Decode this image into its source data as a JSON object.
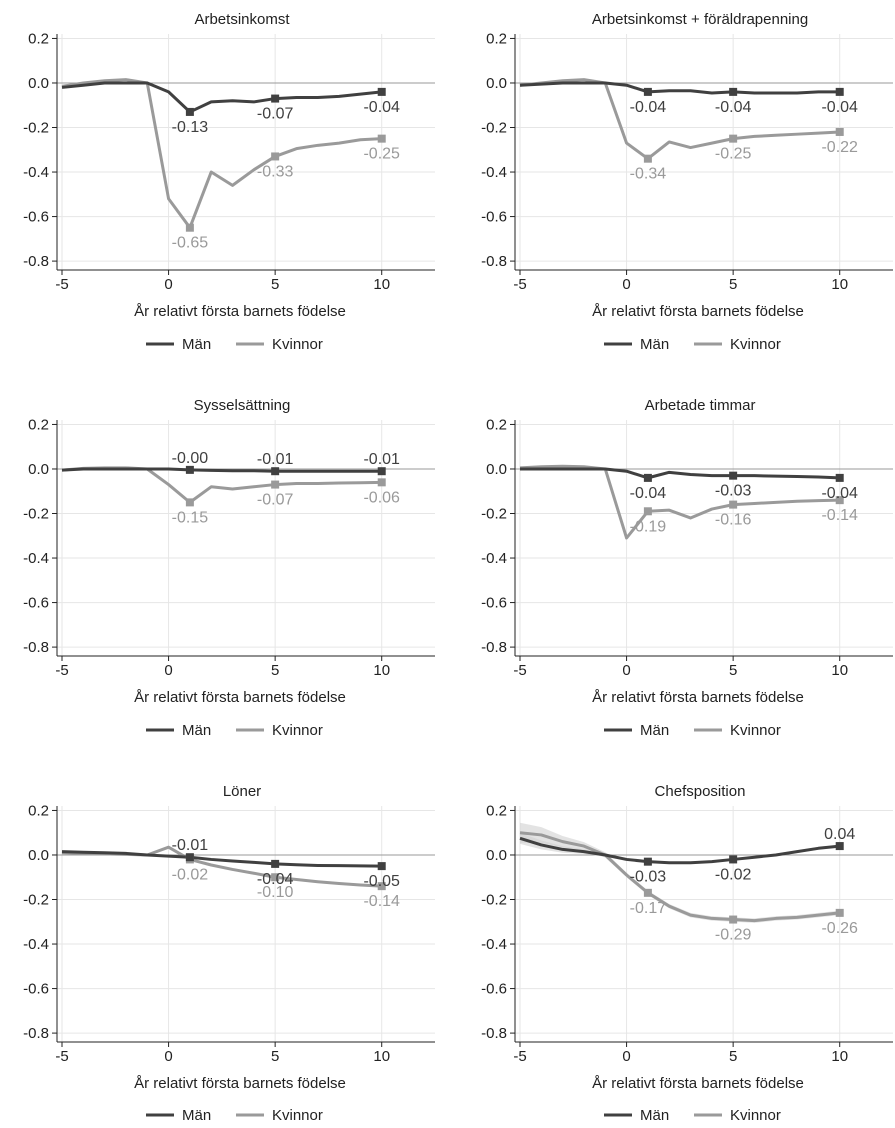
{
  "chart_data": [
    {
      "type": "line",
      "title": "Arbetsinkomst",
      "xlabel": "År relativt första barnets födelse",
      "ylabel": "",
      "xlim": [
        -5,
        12.5
      ],
      "ylim": [
        -0.84,
        0.22
      ],
      "x_ticks": [
        -5,
        0,
        5,
        10
      ],
      "x_tick_labels": [
        "-5",
        "0",
        "5",
        "10"
      ],
      "y_ticks": [
        0.2,
        0.0,
        -0.2,
        -0.4,
        -0.6,
        -0.8
      ],
      "y_tick_labels": [
        "0.2",
        "0.0",
        "-0.2",
        "-0.4",
        "-0.6",
        "-0.8"
      ],
      "grid": true,
      "legend_position": "bottom",
      "series": [
        {
          "name": "Män",
          "color": "#404040",
          "x": [
            -5,
            -4,
            -3,
            -2,
            -1,
            0,
            1,
            2,
            3,
            4,
            5,
            6,
            7,
            8,
            9,
            10
          ],
          "values": [
            -0.02,
            -0.01,
            0.0,
            0.0,
            0.0,
            -0.04,
            -0.13,
            -0.085,
            -0.08,
            -0.085,
            -0.07,
            -0.065,
            -0.065,
            -0.06,
            -0.05,
            -0.04
          ],
          "marker_x": [
            1,
            5,
            10
          ],
          "marker_labels": [
            "-0.13",
            "-0.07",
            "-0.04"
          ]
        },
        {
          "name": "Kvinnor",
          "color": "#9a9a9a",
          "x": [
            -5,
            -4,
            -3,
            -2,
            -1,
            0,
            1,
            2,
            3,
            4,
            5,
            6,
            7,
            8,
            9,
            10
          ],
          "values": [
            -0.015,
            0.0,
            0.01,
            0.015,
            0.0,
            -0.52,
            -0.65,
            -0.4,
            -0.46,
            -0.39,
            -0.33,
            -0.295,
            -0.28,
            -0.27,
            -0.255,
            -0.25
          ],
          "marker_x": [
            1,
            5,
            10
          ],
          "marker_labels": [
            "-0.65",
            "-0.33",
            "-0.25"
          ]
        }
      ]
    },
    {
      "type": "line",
      "title": "Arbetsinkomst + föräldrapenning",
      "xlabel": "År relativt första barnets födelse",
      "ylabel": "",
      "xlim": [
        -5,
        12.5
      ],
      "ylim": [
        -0.84,
        0.22
      ],
      "x_ticks": [
        -5,
        0,
        5,
        10
      ],
      "x_tick_labels": [
        "-5",
        "0",
        "5",
        "10"
      ],
      "y_ticks": [
        0.2,
        0.0,
        -0.2,
        -0.4,
        -0.6,
        -0.8
      ],
      "y_tick_labels": [
        "0.2",
        "0.0",
        "-0.2",
        "-0.4",
        "-0.6",
        "-0.8"
      ],
      "grid": true,
      "legend_position": "bottom",
      "series": [
        {
          "name": "Män",
          "color": "#404040",
          "x": [
            -5,
            -4,
            -3,
            -2,
            -1,
            0,
            1,
            2,
            3,
            4,
            5,
            6,
            7,
            8,
            9,
            10
          ],
          "values": [
            -0.01,
            -0.005,
            0.0,
            0.0,
            0.0,
            -0.01,
            -0.04,
            -0.035,
            -0.035,
            -0.045,
            -0.04,
            -0.045,
            -0.045,
            -0.045,
            -0.04,
            -0.04
          ],
          "marker_x": [
            1,
            5,
            10
          ],
          "marker_labels": [
            "-0.04",
            "-0.04",
            "-0.04"
          ]
        },
        {
          "name": "Kvinnor",
          "color": "#9a9a9a",
          "x": [
            -5,
            -4,
            -3,
            -2,
            -1,
            0,
            1,
            2,
            3,
            4,
            5,
            6,
            7,
            8,
            9,
            10
          ],
          "values": [
            -0.01,
            0.0,
            0.01,
            0.015,
            0.0,
            -0.27,
            -0.34,
            -0.265,
            -0.29,
            -0.27,
            -0.25,
            -0.24,
            -0.235,
            -0.23,
            -0.225,
            -0.22
          ],
          "marker_x": [
            1,
            5,
            10
          ],
          "marker_labels": [
            "-0.34",
            "-0.25",
            "-0.22"
          ]
        }
      ]
    },
    {
      "type": "line",
      "title": "Sysselsättning",
      "xlabel": "År relativt första barnets födelse",
      "ylabel": "",
      "xlim": [
        -5,
        12.5
      ],
      "ylim": [
        -0.84,
        0.22
      ],
      "x_ticks": [
        -5,
        0,
        5,
        10
      ],
      "x_tick_labels": [
        "-5",
        "0",
        "5",
        "10"
      ],
      "y_ticks": [
        0.2,
        0.0,
        -0.2,
        -0.4,
        -0.6,
        -0.8
      ],
      "y_tick_labels": [
        "0.2",
        "0.0",
        "-0.2",
        "-0.4",
        "-0.6",
        "-0.8"
      ],
      "grid": true,
      "legend_position": "bottom",
      "series": [
        {
          "name": "Män",
          "color": "#404040",
          "x": [
            -5,
            -4,
            -3,
            -2,
            -1,
            0,
            1,
            2,
            3,
            4,
            5,
            6,
            7,
            8,
            9,
            10
          ],
          "values": [
            -0.005,
            0.0,
            0.0,
            0.0,
            0.0,
            0.0,
            -0.004,
            -0.006,
            -0.008,
            -0.008,
            -0.01,
            -0.01,
            -0.01,
            -0.01,
            -0.01,
            -0.01
          ],
          "marker_x": [
            1,
            5,
            10
          ],
          "marker_labels": [
            "-0.00",
            "-0.01",
            "-0.01"
          ]
        },
        {
          "name": "Kvinnor",
          "color": "#9a9a9a",
          "x": [
            -5,
            -4,
            -3,
            -2,
            -1,
            0,
            1,
            2,
            3,
            4,
            5,
            6,
            7,
            8,
            9,
            10
          ],
          "values": [
            -0.005,
            0.003,
            0.005,
            0.005,
            0.0,
            -0.07,
            -0.15,
            -0.08,
            -0.09,
            -0.08,
            -0.07,
            -0.065,
            -0.065,
            -0.063,
            -0.062,
            -0.06
          ],
          "marker_x": [
            1,
            5,
            10
          ],
          "marker_labels": [
            "-0.15",
            "-0.07",
            "-0.06"
          ]
        }
      ]
    },
    {
      "type": "line",
      "title": "Arbetade timmar",
      "xlabel": "År relativt första barnets födelse",
      "ylabel": "",
      "xlim": [
        -5,
        12.5
      ],
      "ylim": [
        -0.84,
        0.22
      ],
      "x_ticks": [
        -5,
        0,
        5,
        10
      ],
      "x_tick_labels": [
        "-5",
        "0",
        "5",
        "10"
      ],
      "y_ticks": [
        0.2,
        0.0,
        -0.2,
        -0.4,
        -0.6,
        -0.8
      ],
      "y_tick_labels": [
        "0.2",
        "0.0",
        "-0.2",
        "-0.4",
        "-0.6",
        "-0.8"
      ],
      "grid": true,
      "legend_position": "bottom",
      "series": [
        {
          "name": "Män",
          "color": "#404040",
          "x": [
            -5,
            -4,
            -3,
            -2,
            -1,
            0,
            1,
            2,
            3,
            4,
            5,
            6,
            7,
            8,
            9,
            10
          ],
          "values": [
            0.0,
            0.0,
            0.0,
            0.0,
            0.0,
            -0.01,
            -0.04,
            -0.015,
            -0.025,
            -0.03,
            -0.03,
            -0.03,
            -0.032,
            -0.034,
            -0.036,
            -0.04
          ],
          "marker_x": [
            1,
            5,
            10
          ],
          "marker_labels": [
            "-0.04",
            "-0.03",
            "-0.04"
          ]
        },
        {
          "name": "Kvinnor",
          "color": "#9a9a9a",
          "x": [
            -5,
            -4,
            -3,
            -2,
            -1,
            0,
            1,
            2,
            3,
            4,
            5,
            6,
            7,
            8,
            9,
            10
          ],
          "values": [
            0.005,
            0.01,
            0.012,
            0.01,
            0.0,
            -0.31,
            -0.19,
            -0.185,
            -0.22,
            -0.18,
            -0.16,
            -0.155,
            -0.15,
            -0.145,
            -0.142,
            -0.14
          ],
          "marker_x": [
            1,
            5,
            10
          ],
          "marker_labels": [
            "-0.19",
            "-0.16",
            "-0.14"
          ]
        }
      ]
    },
    {
      "type": "line",
      "title": "Löner",
      "xlabel": "År relativt första barnets födelse",
      "ylabel": "",
      "xlim": [
        -5,
        12.5
      ],
      "ylim": [
        -0.84,
        0.22
      ],
      "x_ticks": [
        -5,
        0,
        5,
        10
      ],
      "x_tick_labels": [
        "-5",
        "0",
        "5",
        "10"
      ],
      "y_ticks": [
        0.2,
        0.0,
        -0.2,
        -0.4,
        -0.6,
        -0.8
      ],
      "y_tick_labels": [
        "0.2",
        "0.0",
        "-0.2",
        "-0.4",
        "-0.6",
        "-0.8"
      ],
      "grid": true,
      "legend_position": "bottom",
      "series": [
        {
          "name": "Män",
          "color": "#404040",
          "x": [
            -5,
            -4,
            -3,
            -2,
            -1,
            0,
            1,
            2,
            3,
            4,
            5,
            6,
            7,
            8,
            9,
            10
          ],
          "values": [
            0.015,
            0.012,
            0.01,
            0.007,
            0.0,
            -0.005,
            -0.01,
            -0.02,
            -0.027,
            -0.033,
            -0.04,
            -0.044,
            -0.047,
            -0.048,
            -0.049,
            -0.05
          ],
          "marker_x": [
            1,
            5,
            10
          ],
          "marker_labels": [
            "-0.01",
            "-0.04",
            "-0.05"
          ]
        },
        {
          "name": "Kvinnor",
          "color": "#9a9a9a",
          "x": [
            -5,
            -4,
            -3,
            -2,
            -1,
            0,
            1,
            2,
            3,
            4,
            5,
            6,
            7,
            8,
            9,
            10
          ],
          "values": [
            0.01,
            0.008,
            0.005,
            0.003,
            0.0,
            0.035,
            -0.02,
            -0.045,
            -0.065,
            -0.082,
            -0.1,
            -0.11,
            -0.12,
            -0.128,
            -0.135,
            -0.14
          ],
          "marker_x": [
            1,
            5,
            10
          ],
          "marker_labels": [
            "-0.02",
            "-0.10",
            "-0.14"
          ]
        }
      ]
    },
    {
      "type": "line",
      "title": "Chefsposition",
      "xlabel": "År relativt första barnets födelse",
      "ylabel": "",
      "xlim": [
        -5,
        12.5
      ],
      "ylim": [
        -0.84,
        0.22
      ],
      "x_ticks": [
        -5,
        0,
        5,
        10
      ],
      "x_tick_labels": [
        "-5",
        "0",
        "5",
        "10"
      ],
      "y_ticks": [
        0.2,
        0.0,
        -0.2,
        -0.4,
        -0.6,
        -0.8
      ],
      "y_tick_labels": [
        "0.2",
        "0.0",
        "-0.2",
        "-0.4",
        "-0.6",
        "-0.8"
      ],
      "grid": true,
      "legend_position": "bottom",
      "confidence_bands": true,
      "series": [
        {
          "name": "Män",
          "color": "#404040",
          "x": [
            -5,
            -4,
            -3,
            -2,
            -1,
            0,
            1,
            2,
            3,
            4,
            5,
            6,
            7,
            8,
            9,
            10
          ],
          "values": [
            0.075,
            0.045,
            0.025,
            0.015,
            0.0,
            -0.02,
            -0.03,
            -0.035,
            -0.035,
            -0.03,
            -0.02,
            -0.01,
            0.0,
            0.015,
            0.03,
            0.04
          ],
          "band_halfwidth": [
            0.025,
            0.02,
            0.015,
            0.01,
            0.008,
            0.005,
            0.005,
            0.005,
            0.005,
            0.005,
            0.005,
            0.005,
            0.006,
            0.006,
            0.006,
            0.006
          ],
          "marker_x": [
            1,
            5,
            10
          ],
          "marker_labels": [
            "-0.03",
            "-0.02",
            "0.04"
          ]
        },
        {
          "name": "Kvinnor",
          "color": "#9a9a9a",
          "x": [
            -5,
            -4,
            -3,
            -2,
            -1,
            0,
            1,
            2,
            3,
            4,
            5,
            6,
            7,
            8,
            9,
            10
          ],
          "values": [
            0.1,
            0.09,
            0.06,
            0.04,
            0.0,
            -0.09,
            -0.17,
            -0.23,
            -0.27,
            -0.285,
            -0.29,
            -0.295,
            -0.285,
            -0.28,
            -0.27,
            -0.26
          ],
          "band_halfwidth": [
            0.045,
            0.035,
            0.025,
            0.018,
            0.012,
            0.01,
            0.01,
            0.01,
            0.01,
            0.01,
            0.01,
            0.01,
            0.01,
            0.01,
            0.01,
            0.01
          ],
          "marker_x": [
            1,
            5,
            10
          ],
          "marker_labels": [
            "-0.17",
            "-0.29",
            "-0.26"
          ]
        }
      ]
    }
  ]
}
